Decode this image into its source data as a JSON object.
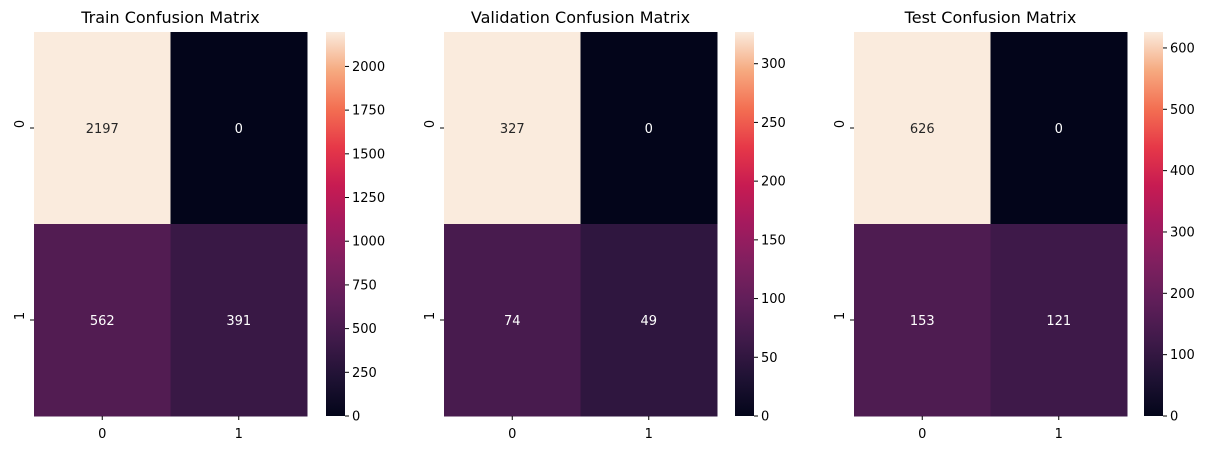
{
  "chart_data": [
    {
      "type": "heatmap",
      "title": "Train Confusion Matrix",
      "x_ticks": [
        "0",
        "1"
      ],
      "y_ticks": [
        "0",
        "1"
      ],
      "matrix": [
        [
          2197,
          0
        ],
        [
          562,
          391
        ]
      ],
      "colorbar": {
        "vmin": 0,
        "vmax": 2197,
        "ticks": [
          0,
          250,
          500,
          750,
          1000,
          1250,
          1500,
          1750,
          2000
        ]
      }
    },
    {
      "type": "heatmap",
      "title": "Validation Confusion Matrix",
      "x_ticks": [
        "0",
        "1"
      ],
      "y_ticks": [
        "0",
        "1"
      ],
      "matrix": [
        [
          327,
          0
        ],
        [
          74,
          49
        ]
      ],
      "colorbar": {
        "vmin": 0,
        "vmax": 327,
        "ticks": [
          0,
          50,
          100,
          150,
          200,
          250,
          300
        ]
      }
    },
    {
      "type": "heatmap",
      "title": "Test Confusion Matrix",
      "x_ticks": [
        "0",
        "1"
      ],
      "y_ticks": [
        "0",
        "1"
      ],
      "matrix": [
        [
          626,
          0
        ],
        [
          153,
          121
        ]
      ],
      "colorbar": {
        "vmin": 0,
        "vmax": 626,
        "ticks": [
          0,
          100,
          200,
          300,
          400,
          500,
          600
        ]
      }
    }
  ],
  "colormap": "rocket",
  "colors": {
    "text_on_dark": "#ffffff",
    "text_on_light": "#262626"
  }
}
